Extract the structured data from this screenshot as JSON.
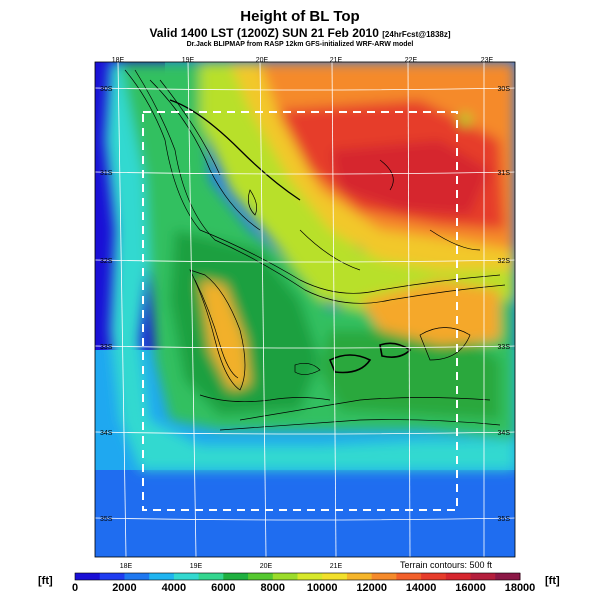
{
  "header": {
    "title": "Height of BL Top",
    "subtitle_main": "Valid 1400 LST (1200Z) SUN 21 Feb 2010",
    "subtitle_small": "[24hrFcst@1838z]",
    "credit": "Dr.Jack BLIPMAP from RASP 12km GFS-initialized WRF-ARW model"
  },
  "map": {
    "lon_labels_top": [
      "18E",
      "19E",
      "20E",
      "21E",
      "22E",
      "23E"
    ],
    "lon_labels_bottom": [
      "18E",
      "19E",
      "20E",
      "21E"
    ],
    "lat_labels_left": [
      "30S",
      "31S",
      "32S",
      "33S",
      "34S",
      "35S"
    ],
    "lat_labels_right": [
      "30S",
      "31S",
      "32S",
      "33S",
      "34S",
      "35S"
    ],
    "terrain_note": "Terrain contours: 500 ft",
    "subdomain_box": "dashed white"
  },
  "colorbar": {
    "unit_left": "[ft]",
    "unit_right": "[ft]",
    "tick_labels": [
      "0",
      "2000",
      "4000",
      "6000",
      "8000",
      "10000",
      "12000",
      "14000",
      "16000",
      "18000"
    ],
    "colors": [
      "#1a0fd6",
      "#1f3cf0",
      "#1f78f0",
      "#1fb4f0",
      "#33d9d0",
      "#33d68f",
      "#1fb040",
      "#55c830",
      "#9bdc2a",
      "#d7e82a",
      "#f2e02a",
      "#f5b52a",
      "#f58a2a",
      "#f2602a",
      "#e63c2a",
      "#d6262e",
      "#b41e3c",
      "#8c1846"
    ]
  }
}
